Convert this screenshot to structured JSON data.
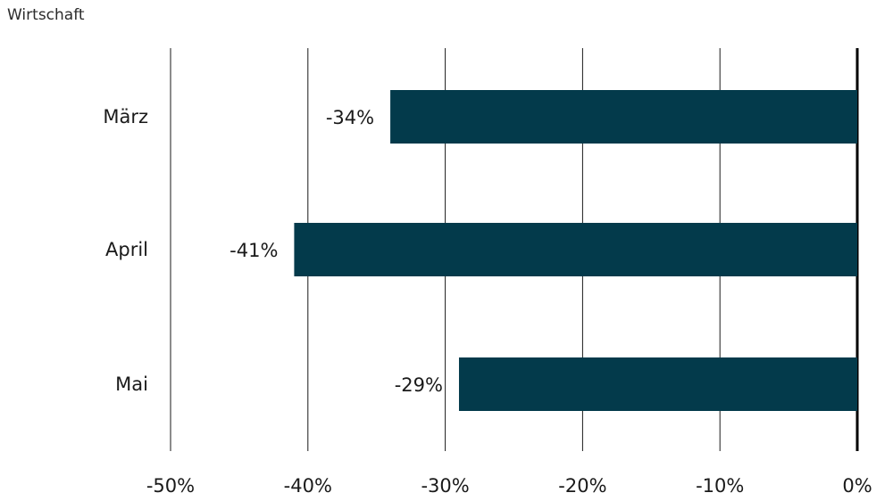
{
  "subtitle": "Wirtschaft",
  "colors": {
    "bar": "#033a4b",
    "grid": "#1a1a1a",
    "zero_line": "#000000",
    "text": "#1a1a1a"
  },
  "chart_data": {
    "type": "bar",
    "orientation": "horizontal",
    "title": "",
    "xlabel": "",
    "ylabel": "",
    "categories": [
      "März",
      "April",
      "Mai"
    ],
    "values": [
      -34,
      -41,
      -29
    ],
    "data_labels": [
      "-34%",
      "-41%",
      "-29%"
    ],
    "x_ticks": [
      -50,
      -40,
      -30,
      -20,
      -10,
      0
    ],
    "x_tick_labels": [
      "-50%",
      "-40%",
      "-30%",
      "-20%",
      "-10%",
      "0%"
    ],
    "xlim": [
      -50,
      0
    ],
    "grid": true,
    "legend": "none"
  }
}
